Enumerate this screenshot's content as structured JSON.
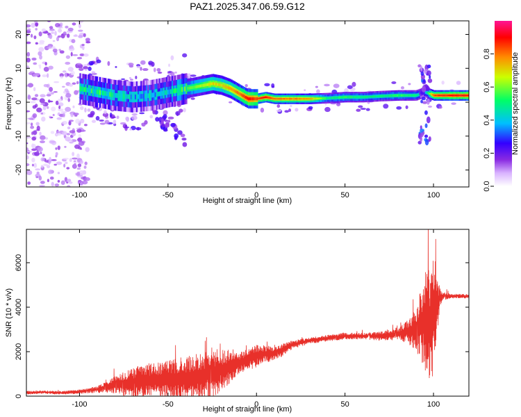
{
  "title": "PAZ1.2025.347.06.59.G12",
  "chart_data": [
    {
      "type": "heatmap",
      "xlabel": "Height of straight line (km)",
      "ylabel": "Frequency (Hz)",
      "xlim": [
        -130,
        120
      ],
      "ylim": [
        -25,
        24
      ],
      "xticks": [
        -100,
        -50,
        0,
        50,
        100
      ],
      "yticks": [
        -20,
        -10,
        0,
        10,
        20
      ],
      "colorbar": {
        "label": "Normalized spectral amplitude",
        "range": [
          0,
          1
        ],
        "ticks": [
          0.0,
          0.2,
          0.4,
          0.6,
          0.8
        ],
        "tick_labels": [
          "0.0",
          "0.2",
          "0.4",
          "0.6",
          "0.8"
        ],
        "colors": [
          "#ffffff",
          "#d9b3ff",
          "#8a2be2",
          "#3300ff",
          "#00bfff",
          "#00ff66",
          "#ccff00",
          "#ff8c00",
          "#ff0000",
          "#ff1493"
        ]
      },
      "ridge": {
        "x": [
          -100,
          -90,
          -80,
          -70,
          -60,
          -50,
          -40,
          -30,
          -25,
          -20,
          -15,
          -10,
          -5,
          0,
          5,
          10,
          20,
          30,
          40,
          50,
          60,
          70,
          80,
          90,
          95,
          100,
          110,
          120
        ],
        "freq": [
          4,
          3,
          2,
          1.5,
          2,
          3,
          4,
          5,
          5.5,
          5,
          4,
          2.5,
          1,
          1,
          1.5,
          1,
          1,
          1,
          1.2,
          1.5,
          1.5,
          1.8,
          2,
          2,
          3,
          2,
          2,
          2
        ],
        "amplitude": [
          0.45,
          0.5,
          0.45,
          0.4,
          0.4,
          0.45,
          0.55,
          0.65,
          0.7,
          0.7,
          0.75,
          0.8,
          0.9,
          0.85,
          0.9,
          0.8,
          0.8,
          0.75,
          0.5,
          0.55,
          0.5,
          0.5,
          0.55,
          0.5,
          0.4,
          0.85,
          0.9,
          0.9
        ]
      }
    },
    {
      "type": "line",
      "xlabel": "Height of straight line (km)",
      "ylabel": "SNR (10 * v/v)",
      "xlim": [
        -130,
        120
      ],
      "ylim": [
        0,
        7500
      ],
      "xticks": [
        -100,
        -50,
        0,
        50,
        100
      ],
      "yticks": [
        0,
        2000,
        4000,
        6000
      ],
      "color": "#e8302a",
      "envelope": {
        "x": [
          -130,
          -120,
          -110,
          -100,
          -90,
          -80,
          -70,
          -60,
          -50,
          -40,
          -30,
          -25,
          -20,
          -10,
          0,
          5,
          10,
          15,
          20,
          30,
          40,
          50,
          60,
          70,
          80,
          85,
          90,
          93,
          95,
          97,
          99,
          101,
          103,
          105,
          110,
          120
        ],
        "mean": [
          150,
          180,
          150,
          200,
          300,
          500,
          600,
          700,
          750,
          800,
          900,
          1000,
          1100,
          1500,
          1800,
          1900,
          1900,
          2100,
          2300,
          2500,
          2600,
          2700,
          2700,
          2700,
          2800,
          2900,
          3000,
          3200,
          3400,
          3300,
          3200,
          3800,
          4300,
          4500,
          4500,
          4500
        ],
        "amplitude": [
          80,
          80,
          80,
          100,
          150,
          400,
          700,
          800,
          900,
          1000,
          1100,
          1200,
          1000,
          500,
          500,
          400,
          300,
          300,
          200,
          150,
          150,
          150,
          150,
          200,
          300,
          500,
          1000,
          1600,
          2200,
          2800,
          2600,
          2000,
          800,
          200,
          100,
          100
        ]
      }
    }
  ]
}
